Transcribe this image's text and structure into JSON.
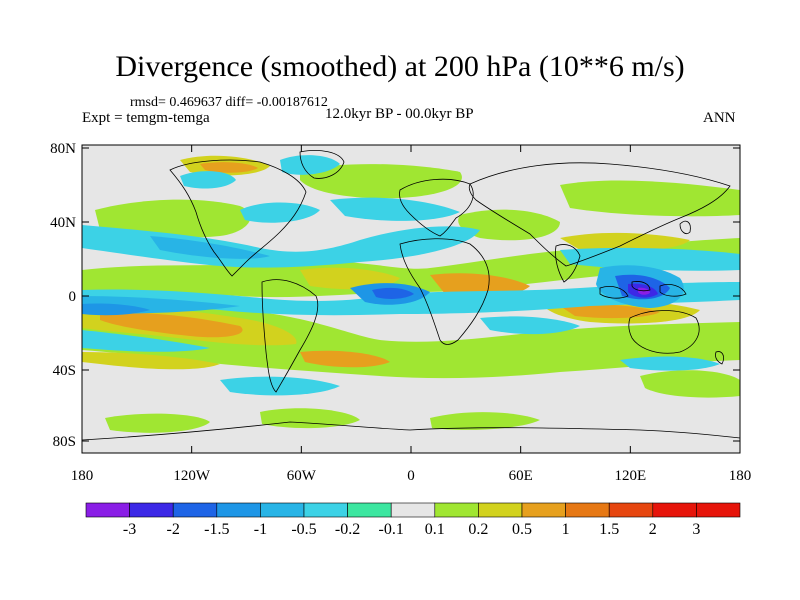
{
  "title": "Divergence (smoothed) at 200 hPa (10**6 m/s)",
  "stats": "rmsd= 0.469637 diff= -0.00187612",
  "experiment": "Expt = temgm-temga",
  "period": "12.0kyr BP - 00.0kyr BP",
  "season": "ANN",
  "map": {
    "lat_ticks": [
      "80N",
      "40N",
      "0",
      "40S",
      "80S"
    ],
    "lon_ticks": [
      "180",
      "120W",
      "60W",
      "0",
      "60E",
      "120E",
      "180"
    ]
  },
  "colorbar": {
    "labels": [
      "-3",
      "-2",
      "-1.5",
      "-1",
      "-0.5",
      "-0.2",
      "-0.1",
      "0.1",
      "0.2",
      "0.5",
      "1",
      "1.5",
      "2",
      "3"
    ],
    "colors": [
      "#8a1ee6",
      "#3c28e6",
      "#1e64e6",
      "#1e96e6",
      "#28b4e6",
      "#3cd2e6",
      "#3ce6a0",
      "#e6e6e6",
      "#a0e632",
      "#d2d21e",
      "#e6a01e",
      "#e67814",
      "#e6460f",
      "#e6140a"
    ]
  }
}
